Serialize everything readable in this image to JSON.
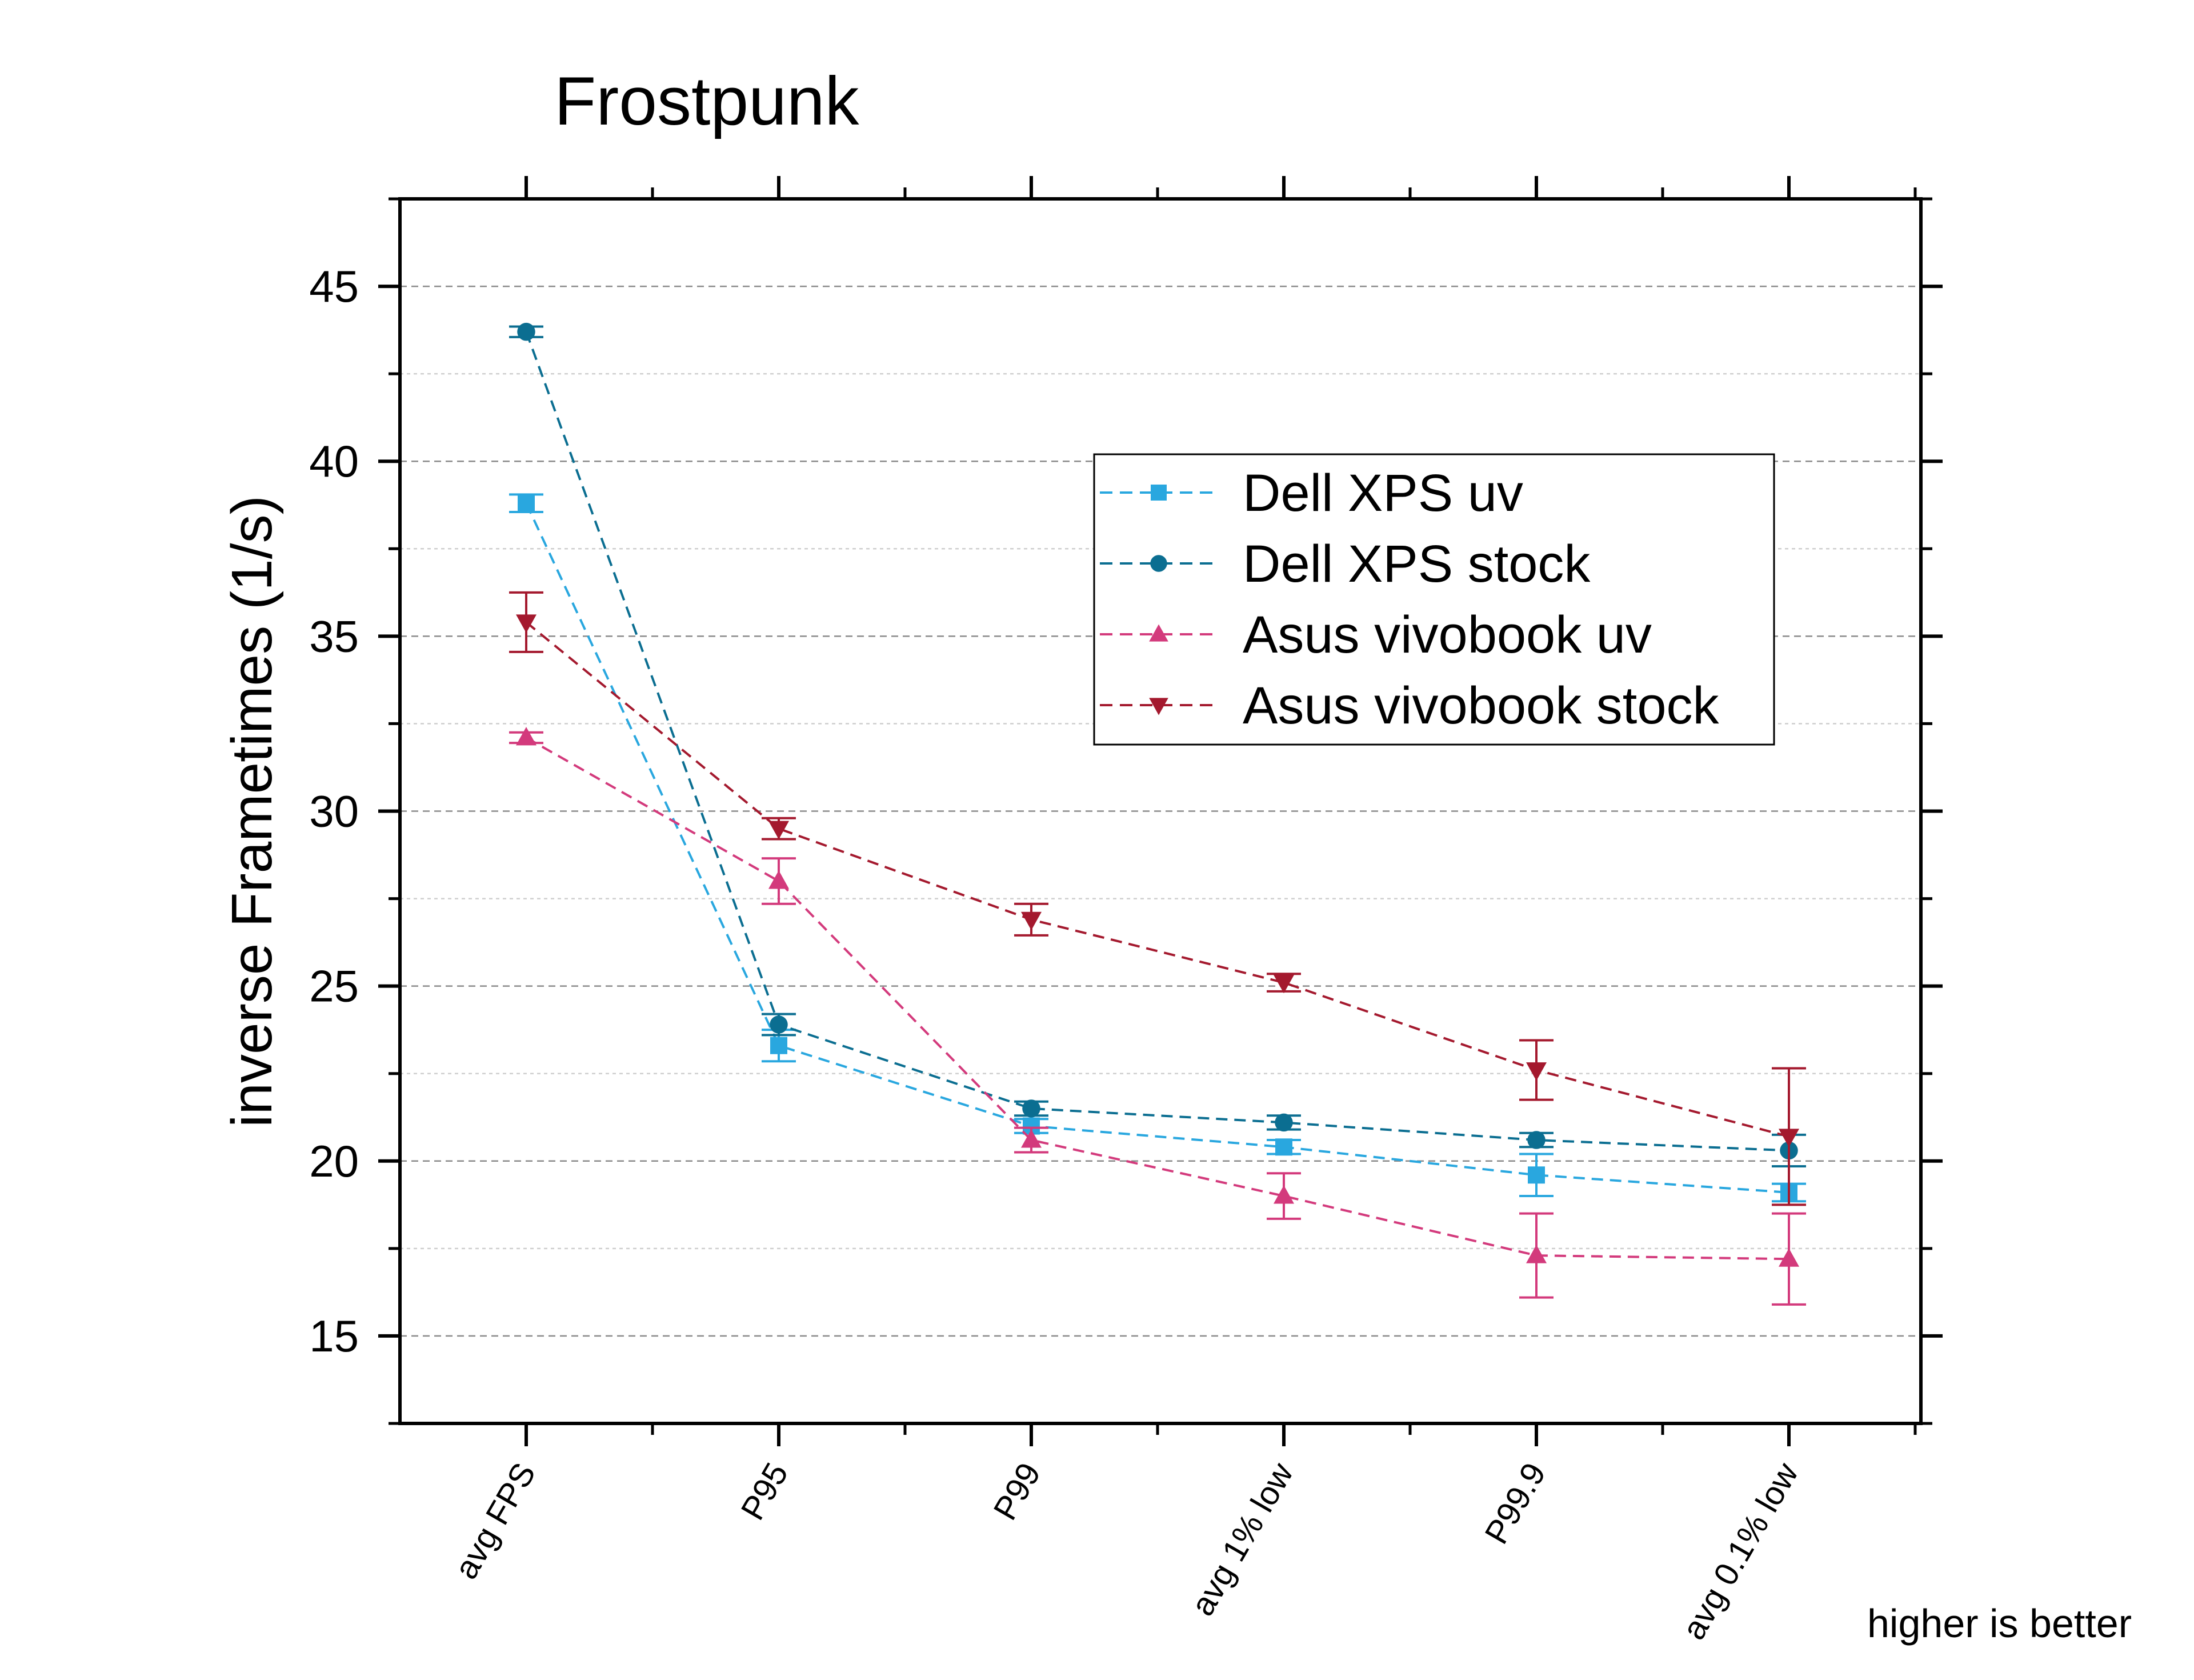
{
  "chart_data": {
    "type": "line",
    "title": "Frostpunk",
    "xlabel": "",
    "ylabel": "inverse Frametimes (1/s)",
    "footnote": "higher is better",
    "categories": [
      "avg FPS",
      "P95",
      "P99",
      "avg 1% low",
      "P99.9",
      "avg 0.1% low"
    ],
    "ylim": [
      12.5,
      47.5
    ],
    "yticks": [
      15,
      20,
      25,
      30,
      35,
      40,
      45
    ],
    "grid": true,
    "legend_position": "top-right",
    "series": [
      {
        "name": "Dell XPS uv",
        "color": "#29a7df",
        "marker": "square",
        "values": [
          38.8,
          23.3,
          21.0,
          20.4,
          19.6,
          19.1
        ],
        "errors": [
          0.25,
          0.45,
          0.2,
          0.2,
          0.6,
          0.25
        ]
      },
      {
        "name": "Dell XPS stock",
        "color": "#0b6e91",
        "marker": "circle",
        "values": [
          43.7,
          23.9,
          21.5,
          21.1,
          20.6,
          20.3
        ],
        "errors": [
          0.15,
          0.3,
          0.2,
          0.2,
          0.2,
          0.45
        ]
      },
      {
        "name": "Asus vivobook uv",
        "color": "#d33a7c",
        "marker": "triangle-up",
        "values": [
          32.1,
          28.0,
          20.6,
          19.0,
          17.3,
          17.2
        ],
        "errors": [
          0.15,
          0.65,
          0.35,
          0.65,
          1.2,
          1.3
        ]
      },
      {
        "name": "Asus vivobook stock",
        "color": "#a4192e",
        "marker": "triangle-down",
        "values": [
          35.4,
          29.5,
          26.9,
          25.1,
          22.6,
          20.7
        ],
        "errors": [
          0.85,
          0.3,
          0.45,
          0.25,
          0.85,
          1.95
        ]
      }
    ]
  }
}
